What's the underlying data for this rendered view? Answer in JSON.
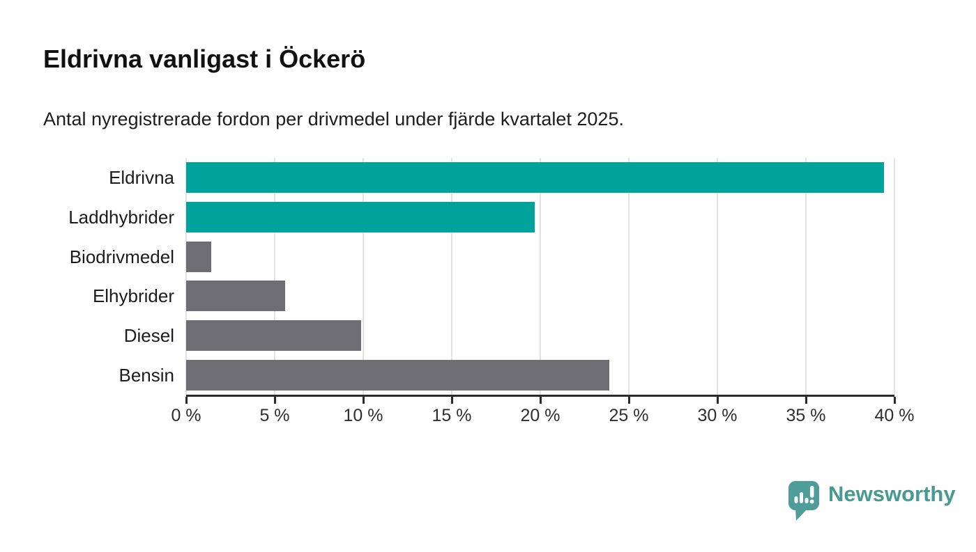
{
  "chart_data": {
    "type": "bar",
    "orientation": "horizontal",
    "title": "Eldrivna vanligast i Öckerö",
    "subtitle": "Antal nyregistrerade fordon per drivmedel under fjärde kvartalet 2025.",
    "categories": [
      "Eldrivna",
      "Laddhybrider",
      "Biodrivmedel",
      "Elhybrider",
      "Diesel",
      "Bensin"
    ],
    "values": [
      39.4,
      19.7,
      1.4,
      5.6,
      9.9,
      23.9
    ],
    "value_unit": "%",
    "bar_colors": [
      "#00a39a",
      "#00a39a",
      "#6d6d73",
      "#6d6d73",
      "#6d6d73",
      "#6d6d73"
    ],
    "xlim": [
      0,
      40
    ],
    "x_ticks": [
      0,
      5,
      10,
      15,
      20,
      25,
      30,
      35,
      40
    ],
    "x_tick_labels": [
      "0 %",
      "5 %",
      "10 %",
      "15 %",
      "20 %",
      "25 %",
      "30 %",
      "35 %",
      "40 %"
    ],
    "grid": "vertical-light",
    "legend": "none"
  },
  "colors": {
    "accent_teal": "#00a39a",
    "neutral_gray": "#6d6d73",
    "gridline": "#e3e3e6",
    "axis": "#2b2b2b",
    "logo_teal": "#48998f",
    "title_text": "#111111",
    "subtitle_text": "#1d1d1d",
    "background": "#ffffff"
  },
  "footer": {
    "brand": "Newsworthy"
  }
}
